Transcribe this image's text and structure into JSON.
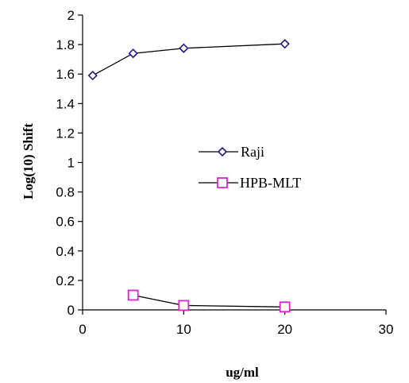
{
  "chart_data": {
    "type": "line",
    "title": "",
    "xlabel": "ug/ml",
    "ylabel": "Log(10) Shift",
    "xlim": [
      0,
      30
    ],
    "ylim": [
      0,
      2
    ],
    "x_ticks": [
      "0",
      "10",
      "20",
      "30"
    ],
    "y_ticks": [
      "0",
      "0.2",
      "0.4",
      "0.6",
      "0.8",
      "1",
      "1.2",
      "1.4",
      "1.6",
      "1.8",
      "2"
    ],
    "grid": false,
    "legend_position": "center-right",
    "series": [
      {
        "name": "Raji",
        "marker": "diamond",
        "color": "#1a1a8c",
        "x": [
          1,
          5,
          10,
          20
        ],
        "y": [
          1.59,
          1.74,
          1.775,
          1.805
        ]
      },
      {
        "name": "HPB-MLT",
        "marker": "square",
        "color": "#e020d0",
        "x": [
          5,
          10,
          20
        ],
        "y": [
          0.1,
          0.03,
          0.02
        ]
      }
    ]
  }
}
